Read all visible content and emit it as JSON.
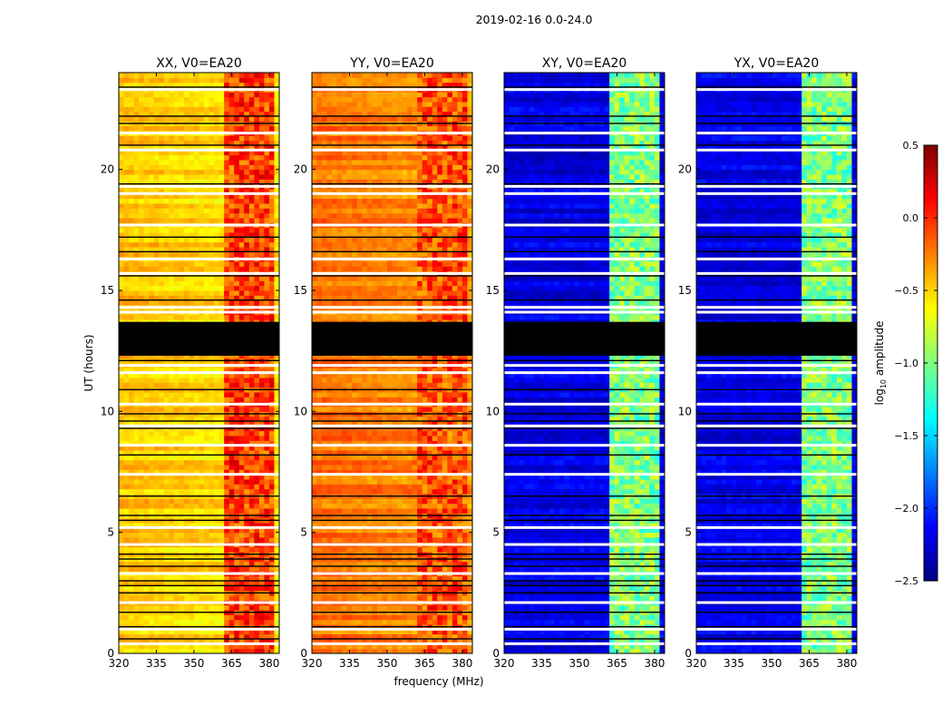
{
  "chart_data": {
    "type": "heatmap",
    "suptitle": "2019-02-16 0.0-24.0",
    "xlabel": "frequency (MHz)",
    "ylabel": "UT (hours)",
    "xlim": [
      320,
      384
    ],
    "ylim": [
      0,
      24
    ],
    "xticks": [
      "320",
      "335",
      "350",
      "365",
      "380"
    ],
    "xtick_values": [
      320,
      335,
      350,
      365,
      380
    ],
    "yticks": [
      "0",
      "5",
      "10",
      "15",
      "20"
    ],
    "ytick_values": [
      0,
      5,
      10,
      15,
      20
    ],
    "colorbar": {
      "label_prefix": "log",
      "label_sub": "10",
      "label_suffix": " amplitude",
      "range": [
        -2.5,
        0.5
      ],
      "colormap": "jet",
      "ticks": [
        "0.5",
        "0.0",
        "−0.5",
        "−1.0",
        "−1.5",
        "−2.0",
        "−2.5"
      ],
      "tick_values": [
        0.5,
        0.0,
        -0.5,
        -1.0,
        -1.5,
        -2.0,
        -2.5
      ]
    },
    "panels": [
      {
        "title": "XX, V0=EA20",
        "base_level": -0.45,
        "rfi_band_level": -0.05,
        "rfi_band_mhz": [
          363,
          381
        ]
      },
      {
        "title": "YY, V0=EA20",
        "base_level": -0.2,
        "rfi_band_level": -0.1,
        "rfi_band_mhz": [
          363,
          381
        ]
      },
      {
        "title": "XY, V0=EA20",
        "base_level": -2.2,
        "rfi_band_level": -1.0,
        "rfi_band_mhz": [
          363,
          381
        ]
      },
      {
        "title": "YX, V0=EA20",
        "base_level": -2.2,
        "rfi_band_level": -1.0,
        "rfi_band_mhz": [
          363,
          381
        ]
      }
    ],
    "flagged_block_ut": [
      12.3,
      13.7
    ],
    "white_gaps_ut": [
      0.4,
      1.0,
      2.1,
      3.3,
      4.5,
      5.2,
      7.4,
      8.6,
      9.4,
      10.3,
      11.6,
      11.9,
      14.1,
      14.3,
      15.7,
      16.3,
      17.7,
      19.0,
      19.3,
      20.8,
      21.5,
      23.3
    ],
    "black_lines_ut": [
      0.6,
      1.1,
      1.7,
      2.5,
      2.8,
      3.0,
      3.6,
      3.9,
      4.1,
      5.5,
      5.7,
      6.5,
      8.2,
      9.3,
      9.6,
      9.9,
      10.9,
      12.1,
      14.6,
      15.6,
      16.6,
      17.2,
      19.4,
      21.0,
      21.9,
      22.2,
      23.4
    ]
  }
}
